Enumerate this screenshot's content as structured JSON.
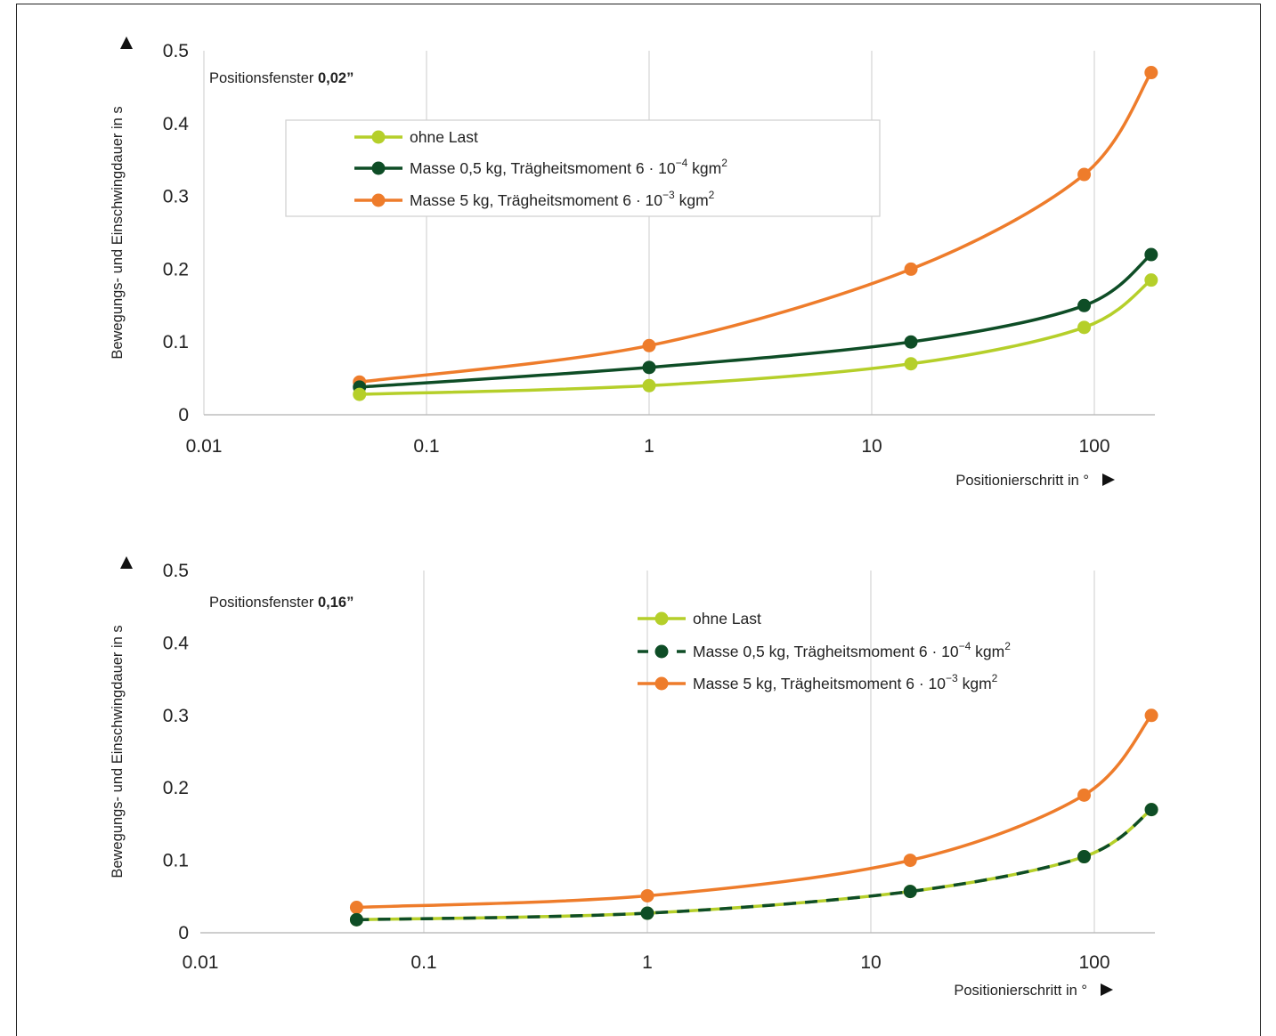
{
  "chart_data": [
    {
      "type": "line",
      "annotation": {
        "prefix": "Positionsfenster ",
        "value": "0,02”"
      },
      "ylabel": "Bewegungs- und Einschwingdauer in s",
      "xlabel": "Positionierschritt in °",
      "x_scale": "log",
      "xlim": [
        0.01,
        180
      ],
      "ylim": [
        0,
        0.5
      ],
      "x_ticks": [
        0.01,
        0.1,
        1,
        10,
        100
      ],
      "x_tick_labels": [
        "0.01",
        "0.1",
        "1",
        "10",
        "100"
      ],
      "y_ticks": [
        0,
        0.1,
        0.2,
        0.3,
        0.4,
        0.5
      ],
      "y_tick_labels": [
        "0",
        "0.1",
        "0.2",
        "0.3",
        "0.4",
        "0.5"
      ],
      "grid": "vertical",
      "legend_position": "top-left, boxed",
      "x": [
        0.05,
        1,
        15,
        90,
        180
      ],
      "series": [
        {
          "name": "ohne Last",
          "values": [
            0.028,
            0.04,
            0.07,
            0.12,
            0.185
          ],
          "color": "#b5cf2a",
          "dashed": false
        },
        {
          "name": "Masse 0,5 kg, Trägheitsmoment 6 · 10",
          "exp": "−4",
          "unit": " kgm",
          "unit_exp": "2",
          "values": [
            0.038,
            0.065,
            0.1,
            0.15,
            0.22
          ],
          "color": "#0e4d26",
          "dashed": false
        },
        {
          "name": "Masse 5 kg, Trägheitsmoment 6 · 10",
          "exp": "−3",
          "unit": " kgm",
          "unit_exp": "2",
          "values": [
            0.045,
            0.095,
            0.2,
            0.33,
            0.47
          ],
          "color": "#ee7c2b",
          "dashed": false
        }
      ]
    },
    {
      "type": "line",
      "annotation": {
        "prefix": "Positionsfenster ",
        "value": "0,16”"
      },
      "ylabel": "Bewegungs- und Einschwingdauer in s",
      "xlabel": "Positionierschritt in °",
      "x_scale": "log",
      "xlim": [
        0.01,
        180
      ],
      "ylim": [
        0,
        0.5
      ],
      "x_ticks": [
        0.01,
        0.1,
        1,
        10,
        100
      ],
      "x_tick_labels": [
        "0.01",
        "0.1",
        "1",
        "10",
        "100"
      ],
      "y_ticks": [
        0,
        0.1,
        0.2,
        0.3,
        0.4,
        0.5
      ],
      "y_tick_labels": [
        "0",
        "0.1",
        "0.2",
        "0.3",
        "0.4",
        "0.5"
      ],
      "grid": "vertical",
      "legend_position": "top-right, unboxed",
      "x": [
        0.05,
        1,
        15,
        90,
        180
      ],
      "series": [
        {
          "name": "ohne Last",
          "values": [
            0.018,
            0.027,
            0.057,
            0.105,
            0.17
          ],
          "color": "#b5cf2a",
          "dashed": false
        },
        {
          "name": "Masse 0,5 kg, Trägheitsmoment 6 · 10",
          "exp": "−4",
          "unit": " kgm",
          "unit_exp": "2",
          "values": [
            0.018,
            0.027,
            0.057,
            0.105,
            0.17
          ],
          "color": "#0e4d26",
          "dashed": true
        },
        {
          "name": "Masse 5 kg, Trägheitsmoment 6 · 10",
          "exp": "−3",
          "unit": " kgm",
          "unit_exp": "2",
          "values": [
            0.035,
            0.051,
            0.1,
            0.19,
            0.3
          ],
          "color": "#ee7c2b",
          "dashed": false
        }
      ]
    }
  ]
}
